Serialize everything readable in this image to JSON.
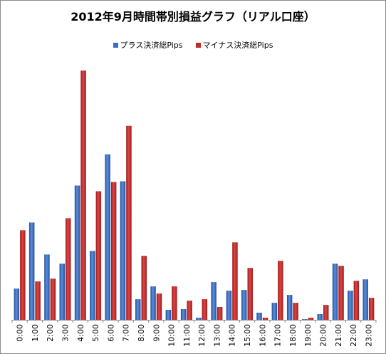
{
  "chart_data": {
    "type": "bar",
    "title": "2012年9月時間帯別損益グラフ（リアル口座）",
    "categories": [
      "0:00",
      "1:00",
      "2:00",
      "3:00",
      "4:00",
      "5:00",
      "6:00",
      "7:00",
      "8:00",
      "9:00",
      "10:00",
      "11:00",
      "12:00",
      "13:00",
      "14:00",
      "15:00",
      "16:00",
      "17:00",
      "18:00",
      "19:00",
      "20:00",
      "21:00",
      "22:00",
      "23:00"
    ],
    "series": [
      {
        "name": "プラス決済総Pips",
        "color": "#3a6fc4",
        "values": [
          44,
          137,
          92,
          79,
          189,
          97,
          233,
          195,
          29,
          47,
          14,
          15,
          3,
          53,
          41,
          42,
          10,
          24,
          35,
          1,
          8,
          79,
          41,
          57
        ]
      },
      {
        "name": "マイナス決済総Pips",
        "color": "#c42a2a",
        "values": [
          126,
          54,
          58,
          143,
          351,
          181,
          194,
          273,
          90,
          37,
          47,
          27,
          29,
          18,
          109,
          73,
          3,
          83,
          24,
          3,
          21,
          76,
          55,
          31
        ]
      }
    ],
    "ylim": [
      0,
      365
    ],
    "grid": false,
    "legend_position": "top"
  }
}
